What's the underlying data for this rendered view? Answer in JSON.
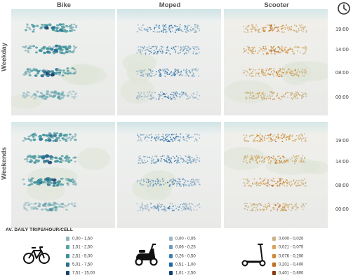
{
  "columns": [
    "Bike",
    "Moped",
    "Scooter"
  ],
  "rows": [
    "Weekday",
    "Weekends"
  ],
  "time_labels": [
    "19:00",
    "14:00",
    "08:00",
    "00:00"
  ],
  "clock_icon": "clock-icon",
  "legend": {
    "title": "AV. DAILY TRIPS/HOUR/CELL",
    "bike": {
      "icon": "bicycle-icon",
      "colors": [
        "#8fb6c0",
        "#5aa3a6",
        "#3a8f9b",
        "#2a6f8f",
        "#18456e"
      ],
      "ranges": [
        "0,00 - 1,50",
        "1,51 - 2,50",
        "2,51 - 5,00",
        "5,01 - 7,50",
        "7,51 - 15,00"
      ]
    },
    "moped": {
      "icon": "moped-icon",
      "colors": [
        "#9db7c9",
        "#6d9bbd",
        "#3f7fb3",
        "#2266a5",
        "#0d3f79"
      ],
      "ranges": [
        "0,00 - 0,05",
        "0,06 - 0,25",
        "0,26 - 0,50",
        "0,51 - 1,00",
        "1,01 - 2,50"
      ]
    },
    "scooter": {
      "icon": "kick-scooter-icon",
      "colors": [
        "#c9b287",
        "#d6a55a",
        "#d28935",
        "#bf6d1f",
        "#8a3b0e"
      ],
      "ranges": [
        "0,000 - 0,020",
        "0,021 - 0,075",
        "0,076 - 0,200",
        "0,201 - 0,400",
        "0,401 - 0,800"
      ]
    }
  },
  "chart_data": {
    "type": "heatmap",
    "title": "",
    "facets": {
      "columns": [
        "Bike",
        "Moped",
        "Scooter"
      ],
      "rows": [
        "Weekday",
        "Weekends"
      ],
      "layers": [
        "19:00",
        "14:00",
        "08:00",
        "00:00"
      ]
    },
    "value_label": "AV. DAILY TRIPS/HOUR/CELL"
  }
}
